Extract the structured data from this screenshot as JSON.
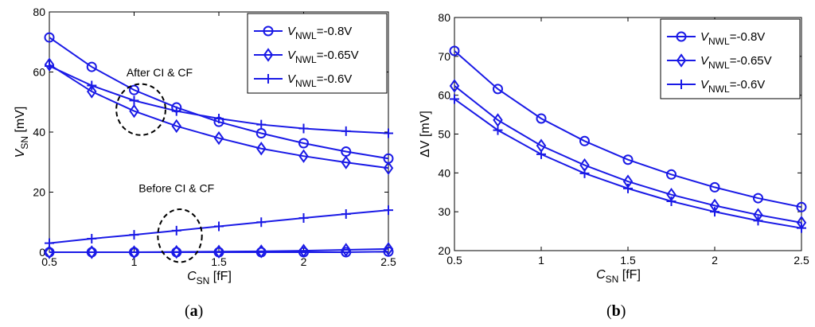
{
  "chart_data": [
    {
      "type": "line",
      "panel": "(a)",
      "xlabel": {
        "main": "C",
        "sub": "SN",
        "unit": " [fF]"
      },
      "ylabel": {
        "main": "V",
        "sub": "SN",
        "unit": " [mV]"
      },
      "xlim": [
        0.5,
        2.5
      ],
      "ylim": [
        0,
        80
      ],
      "xticks": [
        0.5,
        1,
        1.5,
        2,
        2.5
      ],
      "xtick_labels": [
        "0.5",
        "1",
        "1.5",
        "2",
        "2.5"
      ],
      "yticks": [
        0,
        20,
        40,
        60,
        80
      ],
      "ytick_labels": [
        "0",
        "20",
        "40",
        "60",
        "80"
      ],
      "x": [
        0.5,
        0.75,
        1.0,
        1.25,
        1.5,
        1.75,
        2.0,
        2.25,
        2.5
      ],
      "series": [
        {
          "name": "V_NWL=-0.8V after",
          "legend": "=-0.8V",
          "marker": "circle",
          "values": [
            71.5,
            61.7,
            54.0,
            48.2,
            43.4,
            39.6,
            36.3,
            33.5,
            31.2
          ]
        },
        {
          "name": "V_NWL=-0.65V after",
          "legend": "=-0.65V",
          "marker": "diamond",
          "values": [
            62.5,
            53.5,
            47.0,
            42.0,
            38.0,
            34.5,
            32.0,
            29.9,
            28.0
          ]
        },
        {
          "name": "V_NWL=-0.6V after",
          "legend": "=-0.6V",
          "marker": "plus",
          "values": [
            62.0,
            55.5,
            50.5,
            47.0,
            44.5,
            42.5,
            41.2,
            40.3,
            39.6
          ]
        },
        {
          "name": "V_NWL=-0.8V before",
          "marker": "circle",
          "values": [
            0.0,
            0.0,
            0.0,
            0.0,
            0.0,
            0.0,
            0.0,
            0.0,
            0.2
          ]
        },
        {
          "name": "V_NWL=-0.65V before",
          "marker": "diamond",
          "values": [
            0.0,
            0.0,
            0.0,
            0.1,
            0.2,
            0.3,
            0.5,
            0.8,
            1.1
          ]
        },
        {
          "name": "V_NWL=-0.6V before",
          "marker": "plus",
          "values": [
            3.0,
            4.5,
            5.8,
            7.2,
            8.6,
            10.0,
            11.4,
            12.7,
            14.0
          ]
        }
      ],
      "legend_prefix": {
        "main": "V",
        "sub": "NWL"
      },
      "legend_position": "top-right",
      "annotations": [
        {
          "text": "After CI & CF",
          "x": 1.15,
          "y": 58.5
        },
        {
          "text": "Before CI & CF",
          "x": 1.25,
          "y": 20.0
        }
      ],
      "ellipses": [
        {
          "cx": 1.04,
          "cy": 47.5,
          "rx": 0.145,
          "ry": 8.5
        },
        {
          "cx": 1.27,
          "cy": 5.5,
          "rx": 0.13,
          "ry": 8.8
        }
      ]
    },
    {
      "type": "line",
      "panel": "(b)",
      "xlabel": {
        "main": "C",
        "sub": "SN",
        "unit": " [fF]"
      },
      "ylabel": {
        "main": "ΔV [mV]",
        "sub": "",
        "unit": ""
      },
      "xlim": [
        0.5,
        2.5
      ],
      "ylim": [
        20,
        80
      ],
      "xticks": [
        0.5,
        1,
        1.5,
        2,
        2.5
      ],
      "xtick_labels": [
        "0.5",
        "1",
        "1.5",
        "2",
        "2.5"
      ],
      "yticks": [
        20,
        30,
        40,
        50,
        60,
        70,
        80
      ],
      "ytick_labels": [
        "20",
        "30",
        "40",
        "50",
        "60",
        "70",
        "80"
      ],
      "x": [
        0.5,
        0.75,
        1.0,
        1.25,
        1.5,
        1.75,
        2.0,
        2.25,
        2.5
      ],
      "series": [
        {
          "name": "V_NWL=-0.8V",
          "legend": "=-0.8V",
          "marker": "circle",
          "values": [
            71.4,
            61.6,
            54.0,
            48.2,
            43.4,
            39.6,
            36.3,
            33.5,
            31.2
          ]
        },
        {
          "name": "V_NWL=-0.65V",
          "legend": "=-0.65V",
          "marker": "diamond",
          "values": [
            62.4,
            53.6,
            47.0,
            42.0,
            37.8,
            34.4,
            31.6,
            29.2,
            27.2
          ]
        },
        {
          "name": "V_NWL=-0.6V",
          "legend": "=-0.6V",
          "marker": "plus",
          "values": [
            59.0,
            51.0,
            44.8,
            39.9,
            36.0,
            32.7,
            30.0,
            27.7,
            25.8
          ]
        }
      ],
      "legend_prefix": {
        "main": "V",
        "sub": "NWL"
      },
      "legend_position": "top-right",
      "annotations": [],
      "ellipses": []
    }
  ],
  "panel_labels": [
    "a",
    "b"
  ],
  "style": {
    "line_color": "#1a1ae6",
    "ellipse_color": "#000000"
  }
}
